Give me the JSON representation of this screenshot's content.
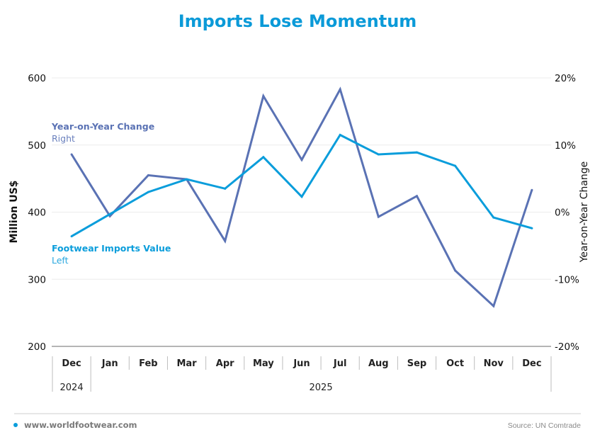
{
  "chart_data": {
    "type": "line",
    "title": "Imports Lose Momentum",
    "categories": [
      "Dec",
      "Jan",
      "Feb",
      "Mar",
      "Apr",
      "May",
      "Jun",
      "Jul",
      "Aug",
      "Sep",
      "Oct",
      "Nov",
      "Dec"
    ],
    "year_groups": [
      {
        "label": "2024",
        "from": 0,
        "to": 0
      },
      {
        "label": "2025",
        "from": 1,
        "to": 12
      }
    ],
    "ylabel_left": "Million US$",
    "ylabel_right": "Year-on-Year Change",
    "ylim_left": [
      200,
      600
    ],
    "ylim_right": [
      -20,
      20
    ],
    "yticks_left": [
      "600",
      "500",
      "400",
      "300",
      "200"
    ],
    "yticks_right": [
      "20%",
      "10%",
      "0%",
      "-10%",
      "-20%"
    ],
    "grid": true,
    "series": [
      {
        "name": "Footwear Imports Value",
        "axis_note": "Left",
        "axis": "left",
        "color": "#0a9ddb",
        "values": [
          364,
          397,
          430,
          449,
          435,
          482,
          423,
          515,
          486,
          489,
          469,
          392,
          376
        ]
      },
      {
        "name": "Year-on-Year Change",
        "axis_note": "Right",
        "axis": "right",
        "color": "#5a72b4",
        "unit": "%",
        "values": [
          8.6,
          -0.6,
          5.5,
          4.9,
          -4.3,
          17.3,
          7.8,
          18.3,
          -0.7,
          2.4,
          -8.7,
          -14.0,
          3.3
        ]
      }
    ]
  },
  "footer": {
    "website": "www.worldfootwear.com",
    "source": "Source: UN Comtrade",
    "dot_color": "#0a9ddb"
  }
}
